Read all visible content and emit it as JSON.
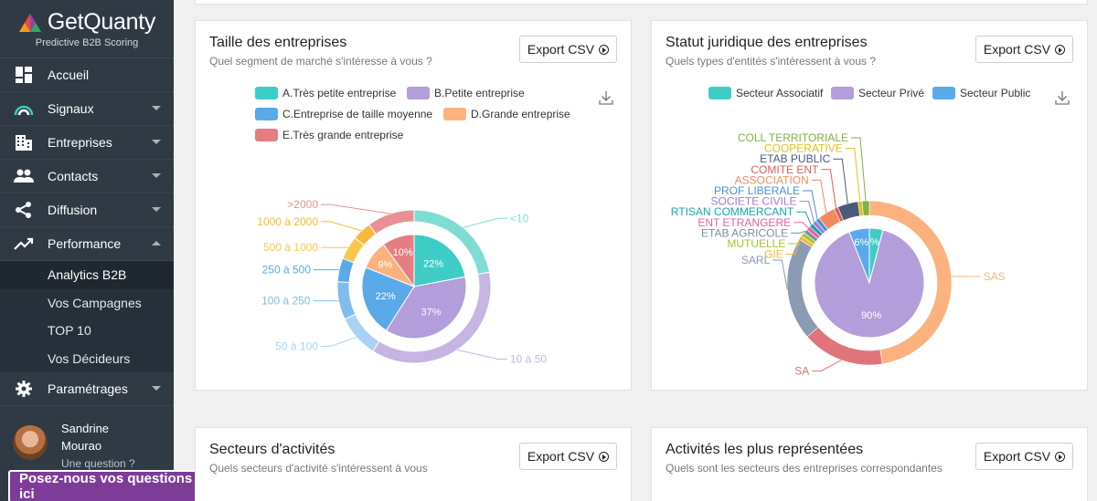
{
  "brand": {
    "name": "GetQuanty",
    "tagline": "Predictive B2B Scoring"
  },
  "nav": [
    {
      "id": "accueil",
      "label": "Accueil",
      "icon": "dashboard-icon",
      "caret": false
    },
    {
      "id": "signaux",
      "label": "Signaux",
      "icon": "signal-icon",
      "caret": true
    },
    {
      "id": "entreprises",
      "label": "Entreprises",
      "icon": "building-icon",
      "caret": true
    },
    {
      "id": "contacts",
      "label": "Contacts",
      "icon": "people-icon",
      "caret": true
    },
    {
      "id": "diffusion",
      "label": "Diffusion",
      "icon": "share-icon",
      "caret": true
    },
    {
      "id": "performance",
      "label": "Performance",
      "icon": "trending-icon",
      "caret": true,
      "expanded": true
    }
  ],
  "subnav": [
    "Analytics B2B",
    "Vos Campagnes",
    "TOP 10",
    "Vos Décideurs"
  ],
  "settings": {
    "label": "Paramétrages",
    "icon": "gear-icon"
  },
  "user": {
    "first": "Sandrine",
    "last": "Mourao",
    "question": "Une question ?"
  },
  "chat": {
    "label": "Posez-nous vos questions ici"
  },
  "colors": {
    "sidebar": "#2f3a45",
    "chat": "#7d3c98"
  },
  "cards": {
    "taille": {
      "title": "Taille des entreprises",
      "subtitle": "Quel segment de marché s'intéresse à vous ?",
      "export": "Export CSV"
    },
    "statut": {
      "title": "Statut juridique des entreprises",
      "subtitle": "Quels types d'entités s'intéressent à vous ?",
      "export": "Export CSV"
    },
    "secteurs": {
      "title": "Secteurs d'activités",
      "subtitle": "Quels secteurs d'activité s'intéressent à vous",
      "export": "Export CSV"
    },
    "activites": {
      "title": "Activités les plus représentées",
      "subtitle": "Quels sont les secteurs des entreprises correspondantes",
      "export": "Export CSV"
    }
  },
  "chart_data": [
    {
      "type": "pie",
      "chart": "taille",
      "legend": [
        {
          "name": "A.Très petite entreprise",
          "color": "#3ecdc6"
        },
        {
          "name": "B.Petite entreprise",
          "color": "#b39ddb"
        },
        {
          "name": "C.Entreprise de taille moyenne",
          "color": "#5aaaea"
        },
        {
          "name": "D.Grande entreprise",
          "color": "#fbb27e"
        },
        {
          "name": "E.Très grande entreprise",
          "color": "#e57e82"
        }
      ],
      "inner": [
        {
          "label": "22%",
          "value": 22,
          "color": "#3ecdc6"
        },
        {
          "label": "37%",
          "value": 37,
          "color": "#b39ddb"
        },
        {
          "label": "22%",
          "value": 22,
          "color": "#5aaaea"
        },
        {
          "label": "9%",
          "value": 9,
          "color": "#fbb27e"
        },
        {
          "label": "10%",
          "value": 10,
          "color": "#e57e82"
        }
      ],
      "outer": [
        {
          "label": "<10",
          "value": 22,
          "color": "#7fdcd4"
        },
        {
          "label": "10 à 50",
          "value": 37,
          "color": "#c6b4e3"
        },
        {
          "label": "50 à 100",
          "value": 9,
          "color": "#a9d3f4"
        },
        {
          "label": "100 à 250",
          "value": 8,
          "color": "#7fbdee"
        },
        {
          "label": "250 à 500",
          "value": 5,
          "color": "#5aaaea"
        },
        {
          "label": "500 à 1000",
          "value": 5,
          "color": "#f9c74f"
        },
        {
          "label": "1000 à 2000",
          "value": 4,
          "color": "#f6b93b"
        },
        {
          "label": ">2000",
          "value": 10,
          "color": "#e89094"
        }
      ]
    },
    {
      "type": "pie",
      "chart": "statut",
      "legend": [
        {
          "name": "Secteur Associatif",
          "color": "#3ecdc6"
        },
        {
          "name": "Secteur Privé",
          "color": "#b39ddb"
        },
        {
          "name": "Secteur Public",
          "color": "#5aaaea"
        }
      ],
      "inner": [
        {
          "label": "%",
          "value": 4,
          "color": "#3ecdc6"
        },
        {
          "label": "90%",
          "value": 90,
          "color": "#b39ddb"
        },
        {
          "label": "6%",
          "value": 6,
          "color": "#5aaaea"
        }
      ],
      "outer": [
        {
          "label": "SAS",
          "value": 47,
          "color": "#fbb27e"
        },
        {
          "label": "SA",
          "value": 16,
          "color": "#e0747a"
        },
        {
          "label": "SARL",
          "value": 20,
          "color": "#8a9bb3"
        },
        {
          "label": "GIE",
          "value": 0.8,
          "color": "#f6b93b"
        },
        {
          "label": "MUTUELLE",
          "value": 0.8,
          "color": "#a5c52d"
        },
        {
          "label": "ETAB AGRICOLE",
          "value": 0.8,
          "color": "#7e8e9e"
        },
        {
          "label": "ENT ETRANGERE",
          "value": 0.8,
          "color": "#e066a6"
        },
        {
          "label": "RTISAN COMMERCANT",
          "value": 0.8,
          "color": "#1aa6a6"
        },
        {
          "label": "SOCIETE CIVILE",
          "value": 0.8,
          "color": "#a37ad6"
        },
        {
          "label": "PROF LIBERALE",
          "value": 0.8,
          "color": "#4b8fd8"
        },
        {
          "label": "ASSOCIATION",
          "value": 3.4,
          "color": "#f08b5f"
        },
        {
          "label": "COMITE ENT",
          "value": 0.8,
          "color": "#d95f5f"
        },
        {
          "label": "ETAB PUBLIC",
          "value": 4,
          "color": "#4a5a7a"
        },
        {
          "label": "COOPERATIVE",
          "value": 0.8,
          "color": "#e0c020"
        },
        {
          "label": "COLL TERRITORIALE",
          "value": 1.4,
          "color": "#7cb342"
        }
      ]
    }
  ]
}
